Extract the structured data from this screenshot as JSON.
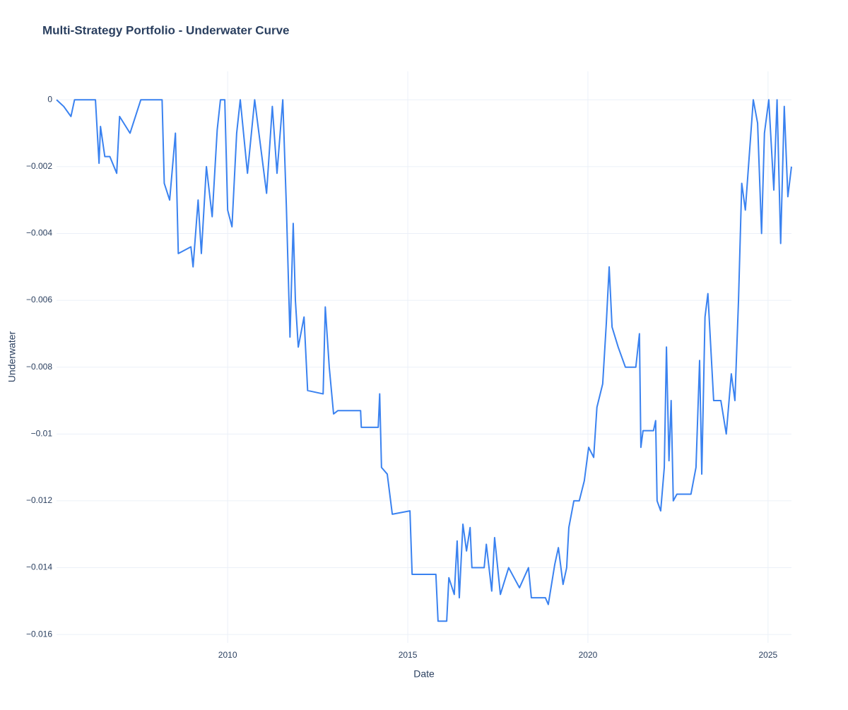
{
  "chart_data": {
    "type": "line",
    "title": "Multi-Strategy Portfolio - Underwater Curve",
    "x_label": "Date",
    "y_label": "Underwater",
    "color": "#3a82f0",
    "grid": true,
    "xlim": [
      2005.25,
      2025.65
    ],
    "xticks": [
      2010,
      2015,
      2020,
      2025
    ],
    "ylim": [
      -0.01625,
      0.00085
    ],
    "yticks": [
      0,
      {
        "value": -0.002,
        "label": "−0.002"
      },
      {
        "value": -0.004,
        "label": "−0.004"
      },
      {
        "value": -0.006,
        "label": "−0.006"
      },
      {
        "value": -0.008,
        "label": "−0.008"
      },
      {
        "value": -0.01,
        "label": "−0.01"
      },
      {
        "value": -0.012,
        "label": "−0.012"
      },
      {
        "value": -0.014,
        "label": "−0.014"
      },
      {
        "value": -0.016,
        "label": "−0.016"
      }
    ],
    "x": [
      2005.25,
      2005.45,
      2005.65,
      2005.75,
      2006.33,
      2006.43,
      2006.47,
      2006.59,
      2006.73,
      2006.92,
      2007.0,
      2007.29,
      2007.59,
      2007.69,
      2008.18,
      2008.24,
      2008.39,
      2008.55,
      2008.63,
      2008.98,
      2009.04,
      2009.18,
      2009.27,
      2009.41,
      2009.57,
      2009.71,
      2009.8,
      2009.92,
      2010.0,
      2010.12,
      2010.25,
      2010.35,
      2010.55,
      2010.75,
      2011.08,
      2011.24,
      2011.37,
      2011.53,
      2011.63,
      2011.73,
      2011.82,
      2011.88,
      2011.96,
      2012.12,
      2012.22,
      2012.65,
      2012.71,
      2012.82,
      2012.94,
      2013.06,
      2013.69,
      2013.71,
      2014.18,
      2014.22,
      2014.27,
      2014.43,
      2014.57,
      2015.06,
      2015.12,
      2015.78,
      2015.84,
      2016.08,
      2016.14,
      2016.29,
      2016.37,
      2016.43,
      2016.53,
      2016.63,
      2016.73,
      2016.78,
      2017.12,
      2017.18,
      2017.33,
      2017.41,
      2017.57,
      2017.8,
      2018.1,
      2018.35,
      2018.43,
      2018.82,
      2018.9,
      2019.08,
      2019.18,
      2019.31,
      2019.41,
      2019.47,
      2019.61,
      2019.76,
      2019.9,
      2020.02,
      2020.16,
      2020.25,
      2020.41,
      2020.51,
      2020.59,
      2020.67,
      2020.84,
      2021.04,
      2021.33,
      2021.43,
      2021.47,
      2021.53,
      2021.82,
      2021.88,
      2021.92,
      2022.02,
      2022.12,
      2022.18,
      2022.25,
      2022.31,
      2022.37,
      2022.47,
      2022.86,
      2023.0,
      2023.1,
      2023.16,
      2023.25,
      2023.33,
      2023.49,
      2023.69,
      2023.84,
      2023.98,
      2024.08,
      2024.18,
      2024.27,
      2024.37,
      2024.47,
      2024.59,
      2024.71,
      2024.82,
      2024.9,
      2025.02,
      2025.16,
      2025.25,
      2025.35,
      2025.45,
      2025.55,
      2025.65
    ],
    "values": [
      0,
      -0.0002,
      -0.0005,
      0,
      0,
      -0.0019,
      -0.0008,
      -0.0017,
      -0.0017,
      -0.0022,
      -0.0005,
      -0.001,
      0,
      0,
      0,
      -0.0025,
      -0.003,
      -0.001,
      -0.0046,
      -0.0044,
      -0.005,
      -0.003,
      -0.0046,
      -0.002,
      -0.0035,
      -0.0009,
      0,
      0,
      -0.0033,
      -0.0038,
      -0.001,
      0,
      -0.0022,
      0,
      -0.0028,
      -0.0002,
      -0.0022,
      0,
      -0.0032,
      -0.0071,
      -0.0037,
      -0.006,
      -0.0074,
      -0.0065,
      -0.0087,
      -0.0088,
      -0.0062,
      -0.008,
      -0.0094,
      -0.0093,
      -0.0093,
      -0.0098,
      -0.0098,
      -0.0088,
      -0.011,
      -0.0112,
      -0.0124,
      -0.0123,
      -0.0142,
      -0.0142,
      -0.0156,
      -0.0156,
      -0.0143,
      -0.0148,
      -0.0132,
      -0.0149,
      -0.0127,
      -0.0135,
      -0.0128,
      -0.014,
      -0.014,
      -0.0133,
      -0.0147,
      -0.0131,
      -0.0148,
      -0.014,
      -0.0146,
      -0.014,
      -0.0149,
      -0.0149,
      -0.0151,
      -0.0139,
      -0.0134,
      -0.0145,
      -0.014,
      -0.0128,
      -0.012,
      -0.012,
      -0.0114,
      -0.0104,
      -0.0107,
      -0.0092,
      -0.0085,
      -0.0067,
      -0.005,
      -0.0068,
      -0.0074,
      -0.008,
      -0.008,
      -0.007,
      -0.0104,
      -0.0099,
      -0.0099,
      -0.0096,
      -0.012,
      -0.0123,
      -0.011,
      -0.0074,
      -0.0108,
      -0.009,
      -0.012,
      -0.0118,
      -0.0118,
      -0.011,
      -0.0078,
      -0.0112,
      -0.0065,
      -0.0058,
      -0.009,
      -0.009,
      -0.01,
      -0.0082,
      -0.009,
      -0.006,
      -0.0025,
      -0.0033,
      -0.0018,
      0,
      -0.0007,
      -0.004,
      -0.001,
      0,
      -0.0027,
      0,
      -0.0043,
      -0.0002,
      -0.0029,
      -0.002
    ]
  }
}
